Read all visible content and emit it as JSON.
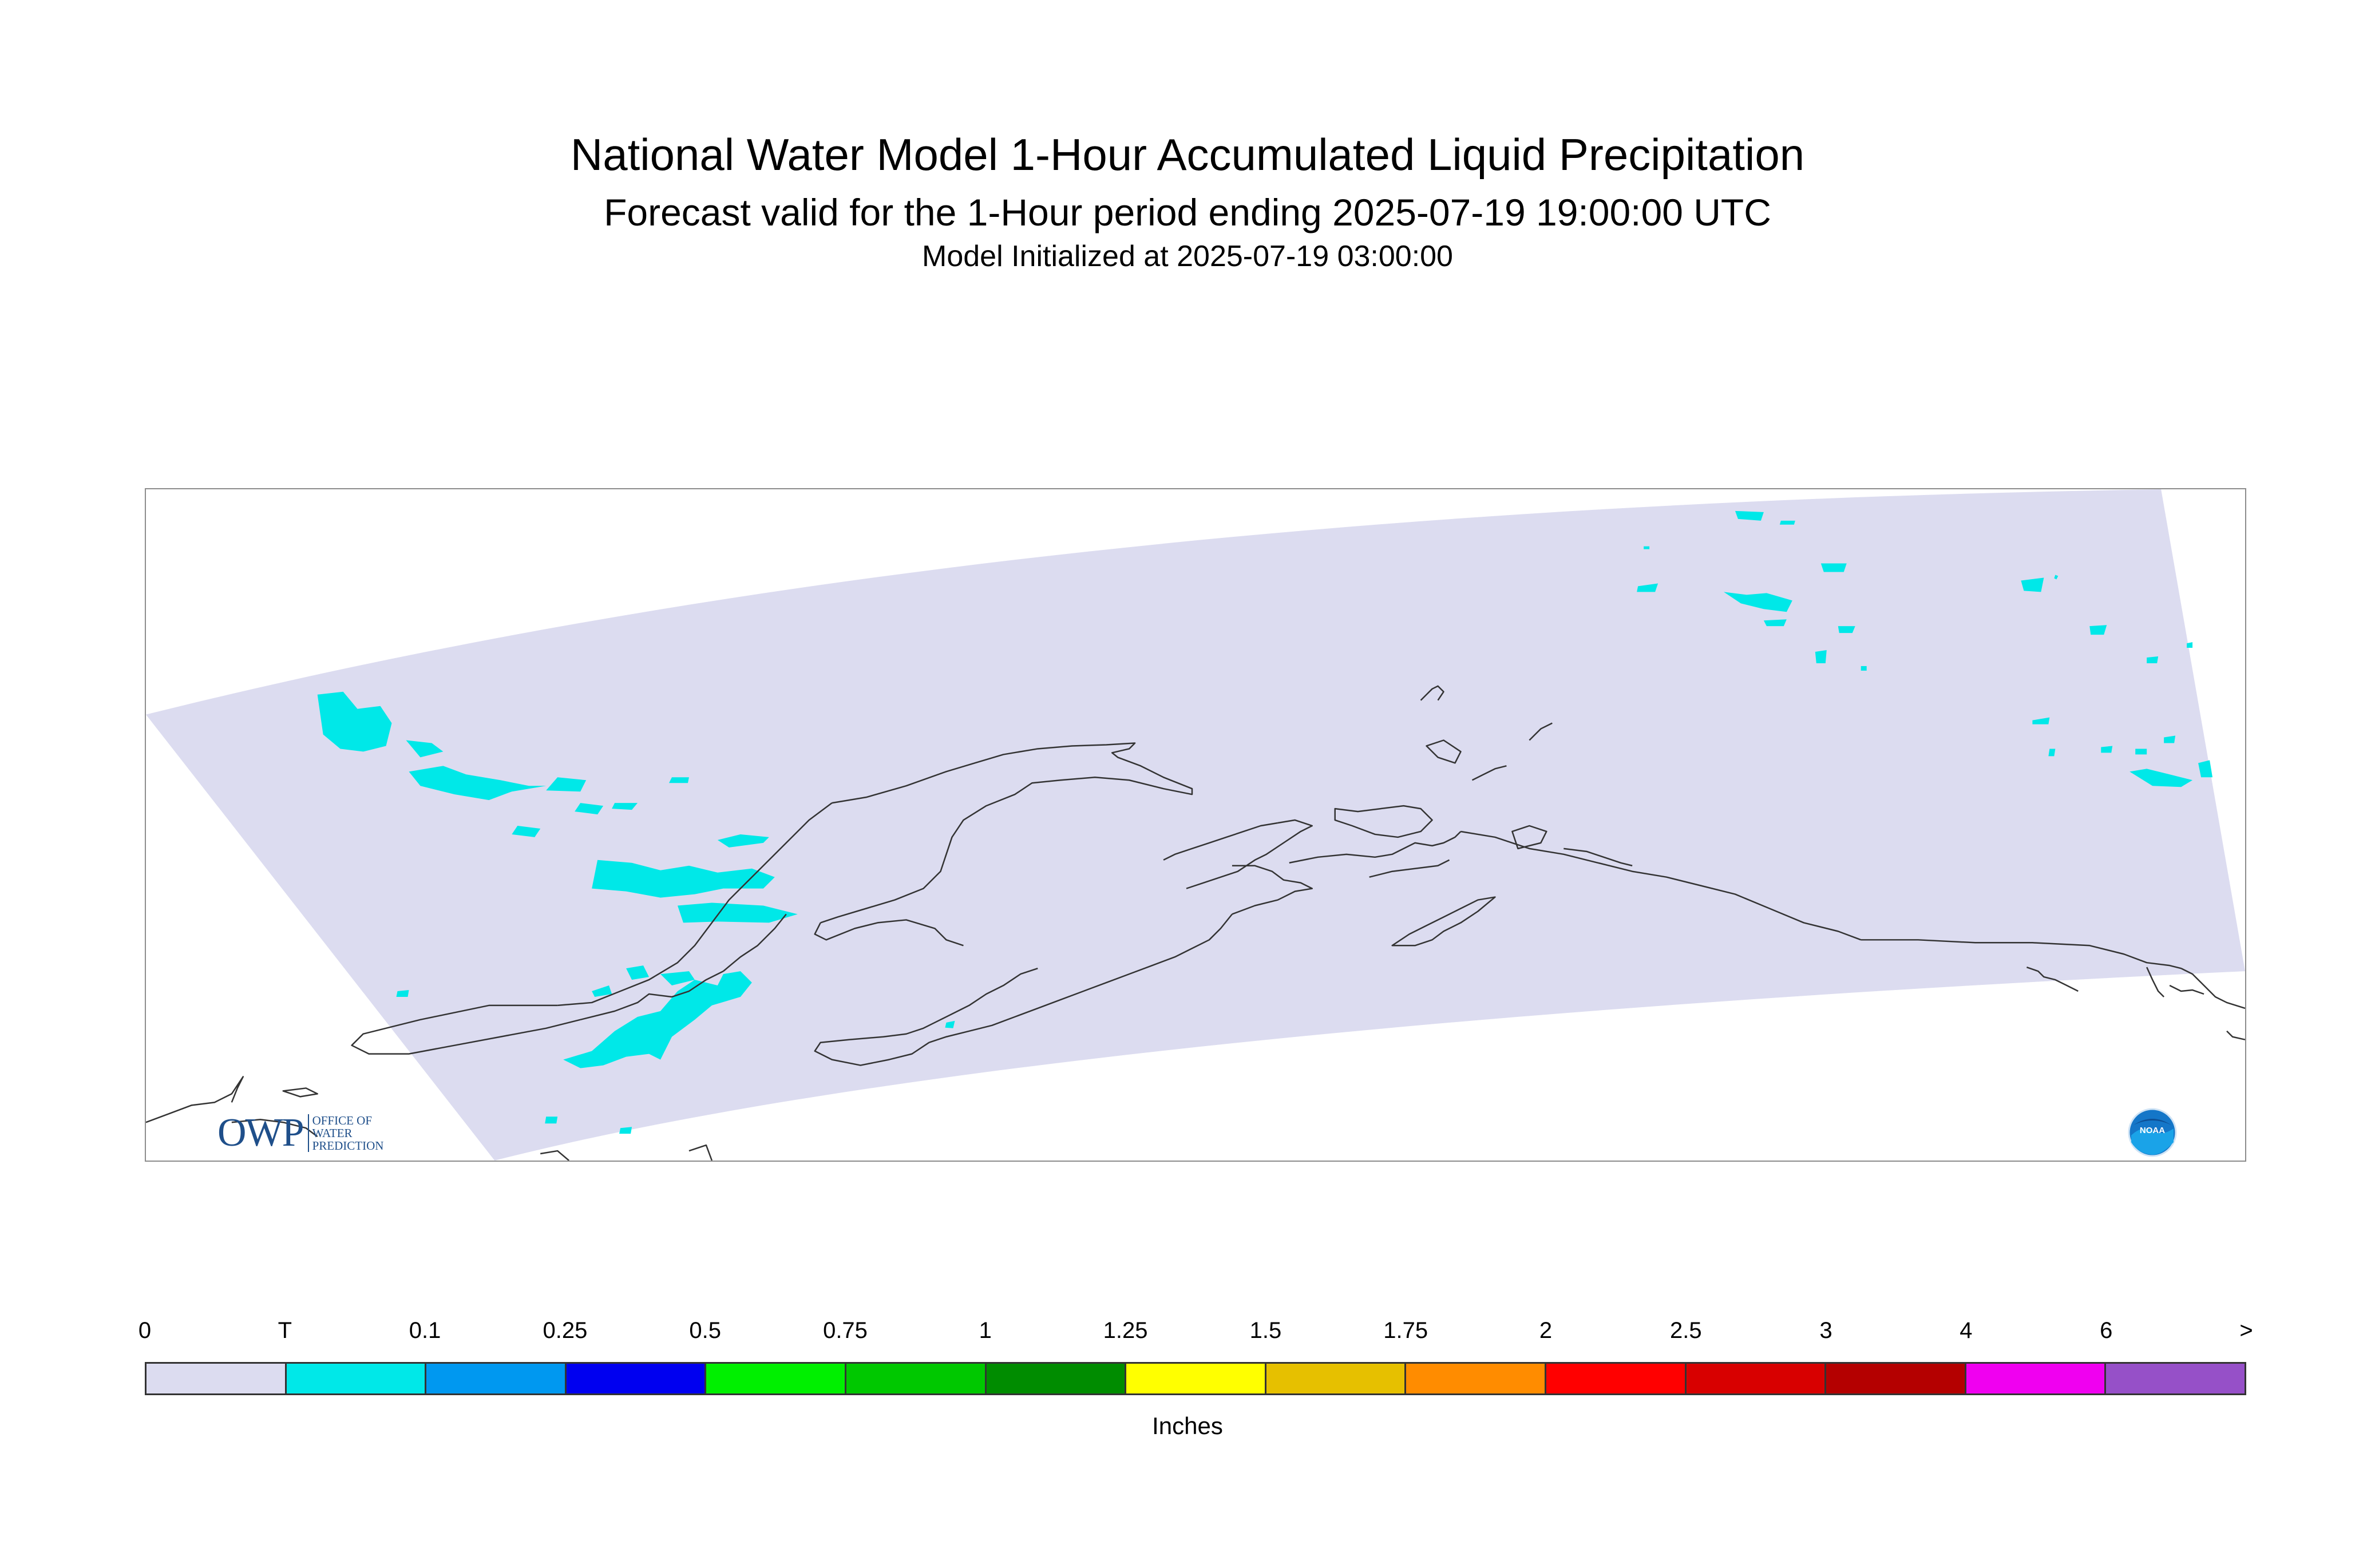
{
  "header": {
    "title": "National Water Model 1-Hour Accumulated Liquid Precipitation",
    "subtitle": "Forecast valid for the 1-Hour period ending 2025-07-19 19:00:00 UTC",
    "init": "Model Initialized at 2025-07-19 03:00:00"
  },
  "map": {
    "region_fill": "#dcdcf0",
    "precip_color": "#00e8e8",
    "coast_color": "#333333"
  },
  "logos": {
    "owp": {
      "letters": "OWP",
      "line1": "OFFICE OF",
      "line2": "WATER",
      "line3": "PREDICTION"
    },
    "noaa": {
      "text": "NOAA"
    }
  },
  "legend": {
    "ticks": [
      "0",
      "T",
      "0.1",
      "0.25",
      "0.5",
      "0.75",
      "1",
      "1.25",
      "1.5",
      "1.75",
      "2",
      "2.5",
      "3",
      "4",
      "6",
      ">"
    ],
    "colors": [
      "#dcdcf0",
      "#00e8e8",
      "#0098f0",
      "#0000f0",
      "#00f000",
      "#00c800",
      "#008c00",
      "#ffff00",
      "#e6c000",
      "#ff8c00",
      "#ff0000",
      "#d80000",
      "#b40000",
      "#f000f0",
      "#9650c8"
    ],
    "units": "Inches"
  }
}
